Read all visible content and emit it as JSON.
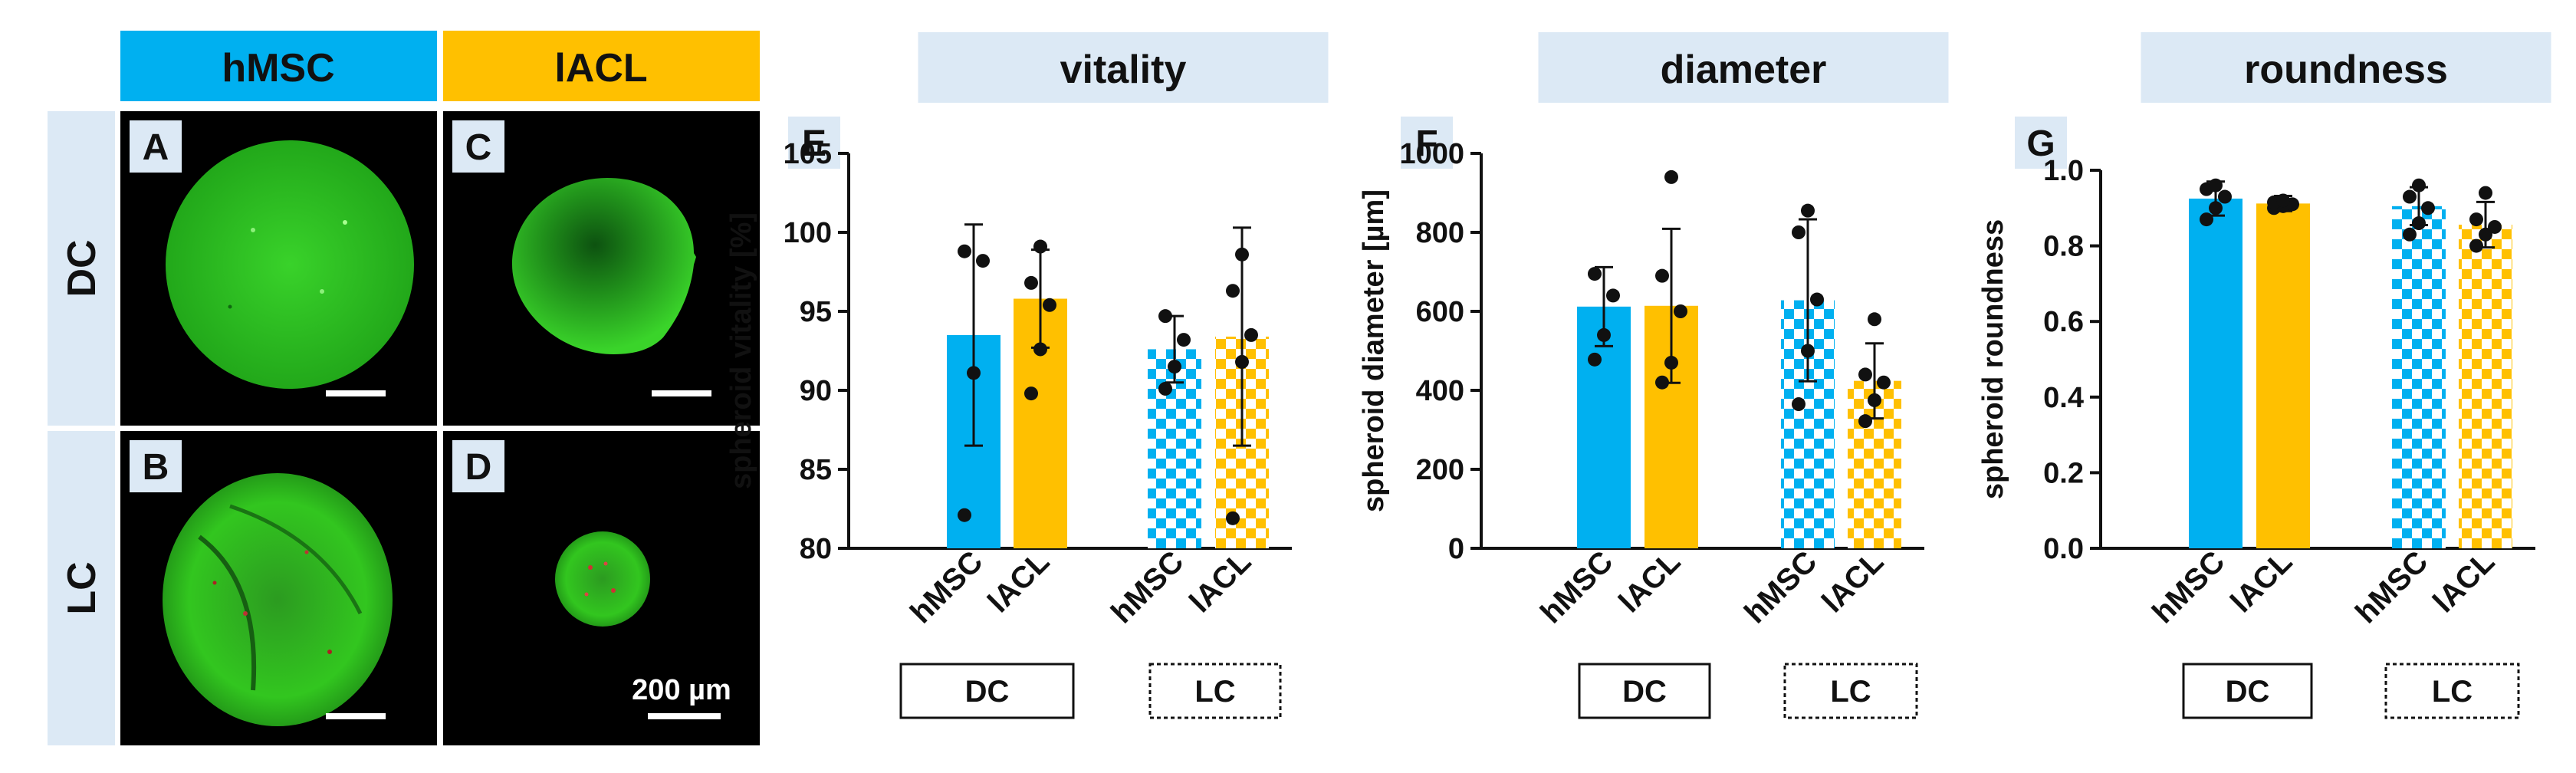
{
  "colors": {
    "hmsc": "#00B0F0",
    "iacl": "#FFC000",
    "header_bg": "#DCE9F5",
    "panel_bg": "#000000",
    "sphere": "#2FC81B",
    "white": "#FFFFFF"
  },
  "micrographs": {
    "col_headers": [
      "hMSC",
      "lACL"
    ],
    "row_headers": [
      "DC",
      "LC"
    ],
    "panels": [
      {
        "letter": "A",
        "row": "DC",
        "col": "hMSC"
      },
      {
        "letter": "C",
        "row": "DC",
        "col": "lACL"
      },
      {
        "letter": "B",
        "row": "LC",
        "col": "hMSC"
      },
      {
        "letter": "D",
        "row": "LC",
        "col": "lACL"
      }
    ],
    "scale_bar_label": "200 µm"
  },
  "chart_data": [
    {
      "type": "bar",
      "panel_letter": "E",
      "title": "vitality",
      "ylabel": "spheroid vitality [%]",
      "ylim": [
        80,
        105
      ],
      "yticks": [
        80,
        85,
        90,
        95,
        100,
        105
      ],
      "tick_labels": [
        "80",
        "85",
        "90",
        "95",
        "100",
        "105"
      ],
      "categories": [
        "hMSC",
        "lACL",
        "hMSC",
        "lACL"
      ],
      "groups": [
        "DC",
        "LC"
      ],
      "means": [
        93.5,
        95.8,
        92.6,
        93.4
      ],
      "sd": [
        7.0,
        3.1,
        2.1,
        6.9
      ],
      "points": [
        [
          82.1,
          91.1,
          98.2,
          98.8
        ],
        [
          89.8,
          92.6,
          95.4,
          96.8,
          99.1
        ],
        [
          90.1,
          91.5,
          93.2,
          94.7
        ],
        [
          81.9,
          91.8,
          93.5,
          96.3,
          98.6
        ]
      ]
    },
    {
      "type": "bar",
      "panel_letter": "F",
      "title": "diameter",
      "ylabel": "spheroid diameter [µm]",
      "ylim": [
        0,
        1000
      ],
      "yticks": [
        0,
        200,
        400,
        600,
        800,
        1000
      ],
      "tick_labels": [
        "0",
        "200",
        "400",
        "600",
        "800",
        "1000"
      ],
      "categories": [
        "hMSC",
        "lACL",
        "hMSC",
        "lACL"
      ],
      "groups": [
        "DC",
        "LC"
      ],
      "means": [
        612,
        614,
        628,
        424
      ],
      "sd": [
        100,
        195,
        205,
        95
      ],
      "points": [
        [
          478,
          540,
          640,
          695
        ],
        [
          420,
          470,
          600,
          690,
          940
        ],
        [
          365,
          500,
          630,
          800,
          855
        ],
        [
          322,
          375,
          420,
          440,
          580
        ]
      ]
    },
    {
      "type": "bar",
      "panel_letter": "G",
      "title": "roundness",
      "ylabel": "spheroid roundness",
      "ylim": [
        0,
        1.0
      ],
      "yticks": [
        0,
        0.2,
        0.4,
        0.6,
        0.8,
        1.0
      ],
      "tick_labels": [
        "0.0",
        "0.2",
        "0.4",
        "0.6",
        "0.8",
        "1.0"
      ],
      "categories": [
        "hMSC",
        "lACL",
        "hMSC",
        "lACL"
      ],
      "groups": [
        "DC",
        "LC"
      ],
      "means": [
        0.925,
        0.912,
        0.905,
        0.856
      ],
      "sd": [
        0.045,
        0.02,
        0.05,
        0.06
      ],
      "points": [
        [
          0.87,
          0.9,
          0.93,
          0.95,
          0.96
        ],
        [
          0.9,
          0.905,
          0.91,
          0.915,
          0.92
        ],
        [
          0.83,
          0.86,
          0.9,
          0.93,
          0.96
        ],
        [
          0.8,
          0.83,
          0.85,
          0.87,
          0.94
        ]
      ]
    }
  ]
}
